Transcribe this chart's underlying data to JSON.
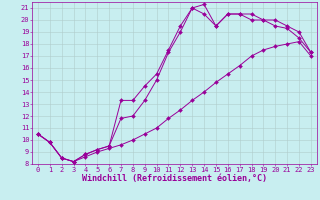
{
  "xlabel": "Windchill (Refroidissement éolien,°C)",
  "bg_color": "#c8eef0",
  "line_color": "#990099",
  "xlim": [
    -0.5,
    23.5
  ],
  "ylim": [
    8,
    21.5
  ],
  "xticks": [
    0,
    1,
    2,
    3,
    4,
    5,
    6,
    7,
    8,
    9,
    10,
    11,
    12,
    13,
    14,
    15,
    16,
    17,
    18,
    19,
    20,
    21,
    22,
    23
  ],
  "yticks": [
    8,
    9,
    10,
    11,
    12,
    13,
    14,
    15,
    16,
    17,
    18,
    19,
    20,
    21
  ],
  "series": [
    {
      "x": [
        0,
        1,
        2,
        3,
        4,
        5,
        6,
        7,
        8,
        9,
        10,
        11,
        12,
        13,
        14,
        15,
        16,
        17,
        18,
        19,
        20,
        21,
        22,
        23
      ],
      "y": [
        10.5,
        9.8,
        8.5,
        8.2,
        8.6,
        9.0,
        9.3,
        9.6,
        10.0,
        10.5,
        11.0,
        11.8,
        12.5,
        13.3,
        14.0,
        14.8,
        15.5,
        16.2,
        17.0,
        17.5,
        17.8,
        18.0,
        18.2,
        17.0
      ]
    },
    {
      "x": [
        0,
        1,
        2,
        3,
        4,
        5,
        6,
        7,
        8,
        9,
        10,
        11,
        12,
        13,
        14,
        15,
        16,
        17,
        18,
        19,
        20,
        21,
        22,
        23
      ],
      "y": [
        10.5,
        9.8,
        8.5,
        8.2,
        8.8,
        9.2,
        9.5,
        11.8,
        12.0,
        13.3,
        15.0,
        17.3,
        19.0,
        21.0,
        20.5,
        19.5,
        20.5,
        20.5,
        20.0,
        20.0,
        19.5,
        19.3,
        18.5,
        17.3
      ]
    },
    {
      "x": [
        0,
        1,
        2,
        3,
        4,
        5,
        6,
        7,
        8,
        9,
        10,
        11,
        12,
        13,
        14,
        15,
        16,
        17,
        18,
        19,
        20,
        21,
        22,
        23
      ],
      "y": [
        10.5,
        9.8,
        8.5,
        8.2,
        8.8,
        9.2,
        9.5,
        13.3,
        13.3,
        14.5,
        15.5,
        17.5,
        19.5,
        21.0,
        21.3,
        19.5,
        20.5,
        20.5,
        20.5,
        20.0,
        20.0,
        19.5,
        19.0,
        17.3
      ]
    }
  ],
  "grid_color": "#b0cccc",
  "marker": "D",
  "markersize": 2,
  "linewidth": 0.7,
  "tick_fontsize": 5.0,
  "xlabel_fontsize": 6.0
}
